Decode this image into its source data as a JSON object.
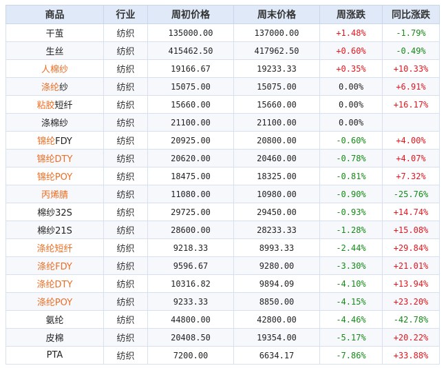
{
  "headers": [
    "商品",
    "行业",
    "周初价格",
    "周末价格",
    "周涨跌",
    "同比涨跌"
  ],
  "colors": {
    "highlight": "#ef6c21",
    "up": "#e5141c",
    "down": "#138a15",
    "header_bg": "#dfe9f7"
  },
  "rows": [
    {
      "name_hi": "",
      "name_rest": "干茧",
      "industry": "纺织",
      "open": "135000.00",
      "close": "137000.00",
      "week": "+1.48%",
      "yoy": "-1.79%"
    },
    {
      "name_hi": "",
      "name_rest": "生丝",
      "industry": "纺织",
      "open": "415462.50",
      "close": "417962.50",
      "week": "+0.60%",
      "yoy": "-0.49%"
    },
    {
      "name_hi": "人棉纱",
      "name_rest": "",
      "industry": "纺织",
      "open": "19166.67",
      "close": "19233.33",
      "week": "+0.35%",
      "yoy": "+10.33%"
    },
    {
      "name_hi": "涤纶",
      "name_rest": "纱",
      "industry": "纺织",
      "open": "15075.00",
      "close": "15075.00",
      "week": "0.00%",
      "yoy": "+6.91%"
    },
    {
      "name_hi": "粘胶",
      "name_rest": "短纤",
      "industry": "纺织",
      "open": "15660.00",
      "close": "15660.00",
      "week": "0.00%",
      "yoy": "+16.17%"
    },
    {
      "name_hi": "",
      "name_rest": "涤棉纱",
      "industry": "纺织",
      "open": "21100.00",
      "close": "21100.00",
      "week": "0.00%",
      "yoy": ""
    },
    {
      "name_hi": "锦纶",
      "name_rest": "FDY",
      "industry": "纺织",
      "open": "20925.00",
      "close": "20800.00",
      "week": "-0.60%",
      "yoy": "+4.00%"
    },
    {
      "name_hi": "锦纶DTY",
      "name_rest": "",
      "industry": "纺织",
      "open": "20620.00",
      "close": "20460.00",
      "week": "-0.78%",
      "yoy": "+4.07%"
    },
    {
      "name_hi": "锦纶POY",
      "name_rest": "",
      "industry": "纺织",
      "open": "18475.00",
      "close": "18325.00",
      "week": "-0.81%",
      "yoy": "+7.32%"
    },
    {
      "name_hi": "丙烯腈",
      "name_rest": "",
      "industry": "纺织",
      "open": "11080.00",
      "close": "10980.00",
      "week": "-0.90%",
      "yoy": "-25.76%"
    },
    {
      "name_hi": "",
      "name_rest": "棉纱32S",
      "industry": "纺织",
      "open": "29725.00",
      "close": "29450.00",
      "week": "-0.93%",
      "yoy": "+14.74%"
    },
    {
      "name_hi": "",
      "name_rest": "棉纱21S",
      "industry": "纺织",
      "open": "28600.00",
      "close": "28233.33",
      "week": "-1.28%",
      "yoy": "+15.08%"
    },
    {
      "name_hi": "涤纶短纤",
      "name_rest": "",
      "industry": "纺织",
      "open": "9218.33",
      "close": "8993.33",
      "week": "-2.44%",
      "yoy": "+29.84%"
    },
    {
      "name_hi": "涤纶FDY",
      "name_rest": "",
      "industry": "纺织",
      "open": "9596.67",
      "close": "9280.00",
      "week": "-3.30%",
      "yoy": "+21.01%"
    },
    {
      "name_hi": "涤纶DTY",
      "name_rest": "",
      "industry": "纺织",
      "open": "10316.82",
      "close": "9894.09",
      "week": "-4.10%",
      "yoy": "+13.94%"
    },
    {
      "name_hi": "涤纶POY",
      "name_rest": "",
      "industry": "纺织",
      "open": "9233.33",
      "close": "8850.00",
      "week": "-4.15%",
      "yoy": "+23.20%"
    },
    {
      "name_hi": "",
      "name_rest": "氨纶",
      "industry": "纺织",
      "open": "44800.00",
      "close": "42800.00",
      "week": "-4.46%",
      "yoy": "-42.78%"
    },
    {
      "name_hi": "",
      "name_rest": "皮棉",
      "industry": "纺织",
      "open": "20408.50",
      "close": "19354.00",
      "week": "-5.17%",
      "yoy": "+20.22%"
    },
    {
      "name_hi": "",
      "name_rest": "PTA",
      "industry": "纺织",
      "open": "7200.00",
      "close": "6634.17",
      "week": "-7.86%",
      "yoy": "+33.88%"
    }
  ]
}
